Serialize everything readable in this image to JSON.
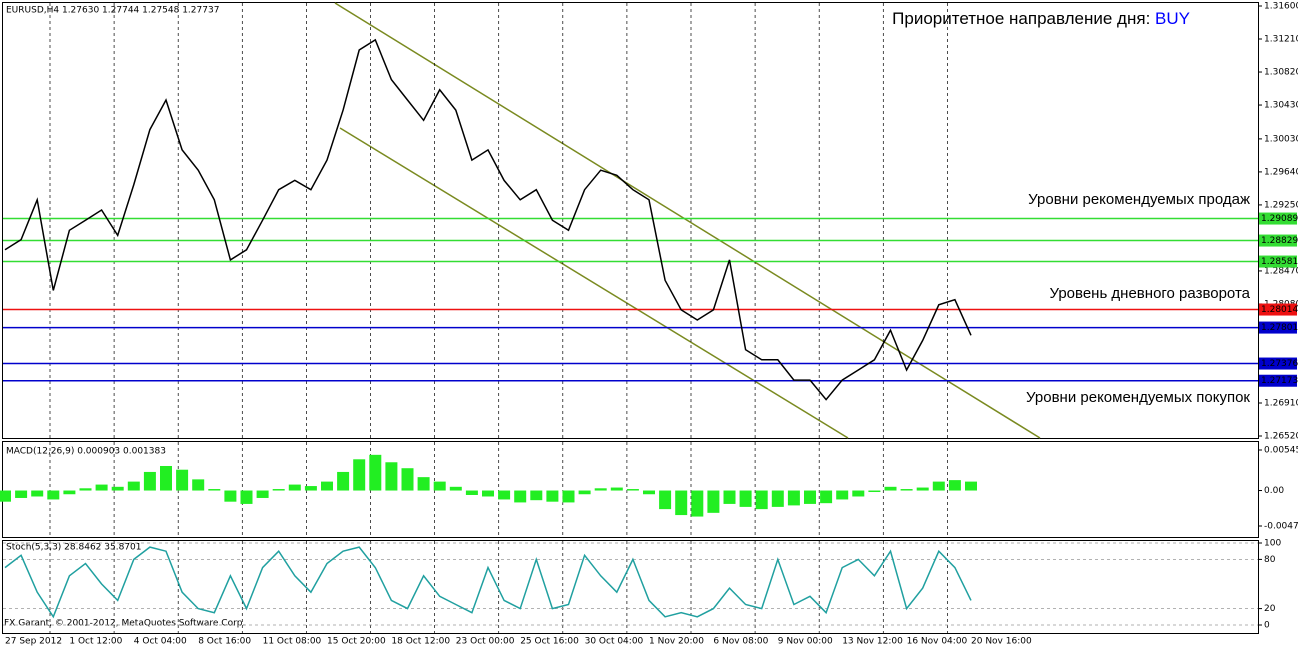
{
  "chart_data": [
    {
      "type": "line",
      "subtitle": "EURUSD,H4  1.27630 1.27744 1.27548 1.27737",
      "title": "Приоритетное направление дня: ",
      "title_signal": "BUY",
      "title_signal_color": "#0000ff",
      "categories": [
        "27 Sep 2012",
        null,
        null,
        null,
        "1 Oct 12:00",
        null,
        null,
        null,
        "4 Oct 04:00",
        null,
        null,
        null,
        "8 Oct 16:00",
        null,
        null,
        null,
        "11 Oct 08:00",
        null,
        null,
        null,
        "15 Oct 20:00",
        null,
        null,
        null,
        "18 Oct 12:00",
        null,
        null,
        null,
        "23 Oct 00:00",
        null,
        null,
        null,
        "25 Oct 16:00",
        null,
        null,
        null,
        "30 Oct 04:00",
        null,
        null,
        null,
        "1 Nov 20:00",
        null,
        null,
        null,
        "6 Nov 08:00",
        null,
        null,
        null,
        "9 Nov 00:00",
        null,
        null,
        null,
        "13 Nov 12:00",
        null,
        null,
        null,
        "16 Nov 04:00",
        null,
        null,
        null,
        "20 Nov 16:00"
      ],
      "series": [
        {
          "color": "#000000",
          "values": [
            1.2872,
            1.2884,
            1.2931,
            1.2824,
            1.2895,
            1.2907,
            1.2919,
            1.2889,
            1.2949,
            1.3014,
            1.3049,
            1.299,
            1.2966,
            1.2931,
            1.286,
            1.2872,
            1.2907,
            1.2943,
            1.2954,
            1.2943,
            1.2978,
            1.3037,
            1.3108,
            1.312,
            1.3073,
            1.3049,
            1.3025,
            1.3061,
            1.3037,
            1.2978,
            1.299,
            1.2954,
            1.2931,
            1.2943,
            1.2907,
            1.2895,
            1.2943,
            1.2966,
            1.296,
            1.2943,
            1.2931,
            1.2836,
            1.2801,
            1.2789,
            1.2801,
            1.286,
            1.2754,
            1.2742,
            1.2742,
            1.2718,
            1.2718,
            1.2695,
            1.2718,
            1.273,
            1.2742,
            1.2777,
            1.273,
            1.2765,
            1.2807,
            1.2813,
            1.2771
          ]
        }
      ],
      "ylim": [
        1.2652,
        1.316
      ],
      "yticks": [
        {
          "value": 1.316,
          "label": "1.31600"
        },
        {
          "value": 1.3121,
          "label": "1.31210"
        },
        {
          "value": 1.3082,
          "label": "1.30820"
        },
        {
          "value": 1.3043,
          "label": "1.30430"
        },
        {
          "value": 1.3003,
          "label": "1.30030"
        },
        {
          "value": 1.2964,
          "label": "1.29640"
        },
        {
          "value": 1.2925,
          "label": "1.29250"
        },
        {
          "value": 1.2847,
          "label": "1.28470"
        },
        {
          "value": 1.2808,
          "label": "1.28080"
        },
        {
          "value": 1.2691,
          "label": "1.26910"
        },
        {
          "value": 1.2652,
          "label": "1.26520"
        }
      ],
      "levels": [
        {
          "value": 1.29089,
          "color": "#33dd33",
          "text_color": "#000000"
        },
        {
          "value": 1.28829,
          "color": "#33dd33",
          "text_color": "#000000"
        },
        {
          "value": 1.28581,
          "color": "#33dd33",
          "text_color": "#000000"
        },
        {
          "value": 1.28014,
          "color": "#ee1111",
          "text_color": "#ffffff"
        },
        {
          "value": 1.27801,
          "color": "#0000cc",
          "text_color": "#ffffff"
        },
        {
          "value": 1.27376,
          "color": "#0000cc",
          "text_color": "#ffffff"
        },
        {
          "value": 1.27173,
          "color": "#0000cc",
          "text_color": "#ffffff"
        }
      ],
      "annotations": [
        {
          "text": "Уровни рекомендуемых продаж",
          "color": "#33cc33"
        },
        {
          "text": "Уровень дневного разворота",
          "color": "#ee1111"
        },
        {
          "text": "Уровни рекомендуемых покупок",
          "color": "#0000cc"
        }
      ]
    },
    {
      "type": "bar",
      "title": "MACD(12,26,9) 0.000903 0.001383",
      "color": "#22ee22",
      "values": [
        -0.0015,
        -0.001,
        -0.0008,
        -0.0012,
        -0.0005,
        0.0003,
        0.0008,
        0.0005,
        0.0012,
        0.0025,
        0.0033,
        0.0028,
        0.0015,
        0.0002,
        -0.0015,
        -0.0018,
        -0.001,
        0.0002,
        0.0008,
        0.0006,
        0.0012,
        0.0025,
        0.0042,
        0.0048,
        0.0038,
        0.003,
        0.0018,
        0.0012,
        0.0005,
        -0.0006,
        -0.0008,
        -0.0012,
        -0.0016,
        -0.0013,
        -0.0015,
        -0.0016,
        -0.0005,
        0.0003,
        0.0004,
        0.0002,
        -0.0005,
        -0.0025,
        -0.0033,
        -0.0035,
        -0.003,
        -0.0018,
        -0.0022,
        -0.0025,
        -0.0022,
        -0.002,
        -0.0018,
        -0.0017,
        -0.0012,
        -0.0008,
        -0.0002,
        0.0005,
        0.0002,
        0.0004,
        0.0012,
        0.0014,
        0.0012
      ],
      "ylim": [
        -0.00477,
        0.00545
      ],
      "yticks": [
        {
          "value": 0.00545,
          "label": "0.00545"
        },
        {
          "value": 0,
          "label": "0.00"
        },
        {
          "value": -0.00477,
          "label": "-0.00477"
        }
      ]
    },
    {
      "type": "line",
      "title": "Stoch(5,3,3) 28.8462 35.8701",
      "copyright": "FX Garant, © 2001-2012, MetaQuotes Software Corp.",
      "series": [
        {
          "color": "#20a0a0",
          "values": [
            70,
            85,
            40,
            10,
            60,
            75,
            50,
            30,
            80,
            95,
            90,
            40,
            20,
            15,
            60,
            20,
            70,
            90,
            60,
            40,
            75,
            90,
            95,
            70,
            30,
            20,
            60,
            35,
            25,
            15,
            70,
            30,
            20,
            80,
            20,
            25,
            85,
            60,
            40,
            80,
            30,
            10,
            15,
            10,
            20,
            45,
            25,
            20,
            80,
            25,
            35,
            15,
            70,
            80,
            60,
            90,
            20,
            45,
            90,
            70,
            30
          ]
        }
      ],
      "ylim": [
        0,
        100
      ],
      "yticks": [
        100,
        80,
        20,
        0
      ],
      "grid": true
    }
  ]
}
